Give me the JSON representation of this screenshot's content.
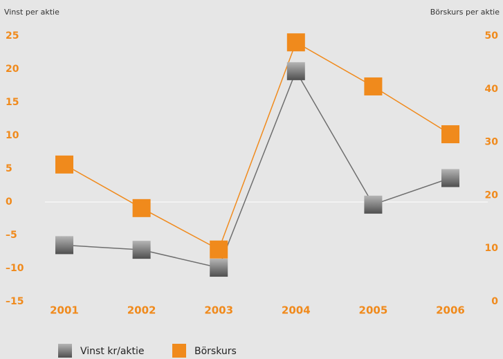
{
  "chart_data": {
    "type": "line",
    "y_label": "Vinst per aktie",
    "y2_label": "Börskurs per aktie",
    "categories": [
      "2001",
      "2002",
      "2003",
      "2004",
      "2005",
      "2006"
    ],
    "series": [
      {
        "name": "Vinst kr/aktie",
        "color": "#6e6e6e",
        "values": [
          -6.5,
          -7.2,
          -9.9,
          19.7,
          -0.4,
          3.6
        ]
      },
      {
        "name": "Börskurs",
        "color": "#f08a1c",
        "axis": "y2",
        "values": [
          25.8,
          17.6,
          9.8,
          48.8,
          40.5,
          31.5
        ]
      }
    ],
    "ylim": [
      -15,
      25
    ],
    "yticks": [
      {
        "value": -15,
        "label": "–15"
      },
      {
        "value": -10,
        "label": "–10"
      },
      {
        "value": -5,
        "label": "–5"
      },
      0,
      5,
      10,
      15,
      20,
      25
    ],
    "y2lim": [
      0,
      50
    ],
    "y2ticks": [
      0,
      10,
      20,
      30,
      40,
      50
    ],
    "legend": "bottom-left"
  }
}
